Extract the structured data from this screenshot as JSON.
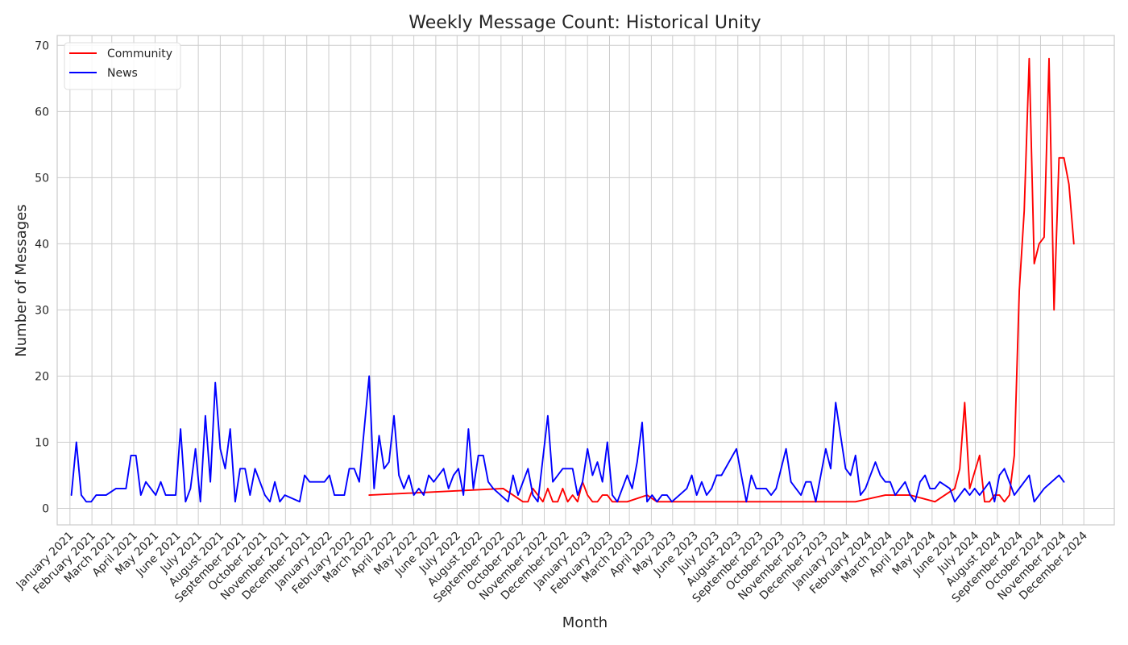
{
  "chart_data": {
    "type": "line",
    "title": "Weekly Message Count: Historical Unity",
    "xlabel": "Month",
    "ylabel": "Number of Messages",
    "xlim": [
      "2020-12-14",
      "2025-01-13"
    ],
    "ylim": [
      -2.5,
      71.5
    ],
    "yticks": [
      0,
      10,
      20,
      30,
      40,
      50,
      60,
      70
    ],
    "grid": true,
    "legend_position": "top-left",
    "month_ticks": [
      {
        "date": "2021-01-01",
        "label": "January 2021"
      },
      {
        "date": "2021-02-01",
        "label": "February 2021"
      },
      {
        "date": "2021-03-01",
        "label": "March 2021"
      },
      {
        "date": "2021-04-01",
        "label": "April 2021"
      },
      {
        "date": "2021-05-01",
        "label": "May 2021"
      },
      {
        "date": "2021-06-01",
        "label": "June 2021"
      },
      {
        "date": "2021-07-01",
        "label": "July 2021"
      },
      {
        "date": "2021-08-01",
        "label": "August 2021"
      },
      {
        "date": "2021-09-01",
        "label": "September 2021"
      },
      {
        "date": "2021-10-01",
        "label": "October 2021"
      },
      {
        "date": "2021-11-01",
        "label": "November 2021"
      },
      {
        "date": "2021-12-01",
        "label": "December 2021"
      },
      {
        "date": "2022-01-01",
        "label": "January 2022"
      },
      {
        "date": "2022-02-01",
        "label": "February 2022"
      },
      {
        "date": "2022-03-01",
        "label": "March 2022"
      },
      {
        "date": "2022-04-01",
        "label": "April 2022"
      },
      {
        "date": "2022-05-01",
        "label": "May 2022"
      },
      {
        "date": "2022-06-01",
        "label": "June 2022"
      },
      {
        "date": "2022-07-01",
        "label": "July 2022"
      },
      {
        "date": "2022-08-01",
        "label": "August 2022"
      },
      {
        "date": "2022-09-01",
        "label": "September 2022"
      },
      {
        "date": "2022-10-01",
        "label": "October 2022"
      },
      {
        "date": "2022-11-01",
        "label": "November 2022"
      },
      {
        "date": "2022-12-01",
        "label": "December 2022"
      },
      {
        "date": "2023-01-01",
        "label": "January 2023"
      },
      {
        "date": "2023-02-01",
        "label": "February 2023"
      },
      {
        "date": "2023-03-01",
        "label": "March 2023"
      },
      {
        "date": "2023-04-01",
        "label": "April 2023"
      },
      {
        "date": "2023-05-01",
        "label": "May 2023"
      },
      {
        "date": "2023-06-01",
        "label": "June 2023"
      },
      {
        "date": "2023-07-01",
        "label": "July 2023"
      },
      {
        "date": "2023-08-01",
        "label": "August 2023"
      },
      {
        "date": "2023-09-01",
        "label": "September 2023"
      },
      {
        "date": "2023-10-01",
        "label": "October 2023"
      },
      {
        "date": "2023-11-01",
        "label": "November 2023"
      },
      {
        "date": "2023-12-01",
        "label": "December 2023"
      },
      {
        "date": "2024-01-01",
        "label": "January 2024"
      },
      {
        "date": "2024-02-01",
        "label": "February 2024"
      },
      {
        "date": "2024-03-01",
        "label": "March 2024"
      },
      {
        "date": "2024-04-01",
        "label": "April 2024"
      },
      {
        "date": "2024-05-01",
        "label": "May 2024"
      },
      {
        "date": "2024-06-01",
        "label": "June 2024"
      },
      {
        "date": "2024-07-01",
        "label": "July 2024"
      },
      {
        "date": "2024-08-01",
        "label": "August 2024"
      },
      {
        "date": "2024-09-01",
        "label": "September 2024"
      },
      {
        "date": "2024-10-01",
        "label": "October 2024"
      },
      {
        "date": "2024-11-01",
        "label": "November 2024"
      },
      {
        "date": "2024-12-01",
        "label": "December 2024"
      }
    ],
    "series": [
      {
        "name": "Community",
        "color": "#ff0000",
        "points": [
          [
            "2022-02-27",
            2
          ],
          [
            "2022-09-04",
            3
          ],
          [
            "2022-09-18",
            2
          ],
          [
            "2022-10-02",
            1
          ],
          [
            "2022-10-09",
            1
          ],
          [
            "2022-10-16",
            3
          ],
          [
            "2022-10-30",
            1
          ],
          [
            "2022-11-06",
            3
          ],
          [
            "2022-11-13",
            1
          ],
          [
            "2022-11-20",
            1
          ],
          [
            "2022-11-27",
            3
          ],
          [
            "2022-12-04",
            1
          ],
          [
            "2022-12-11",
            2
          ],
          [
            "2022-12-18",
            1
          ],
          [
            "2022-12-25",
            4
          ],
          [
            "2023-01-01",
            2
          ],
          [
            "2023-01-08",
            1
          ],
          [
            "2023-01-15",
            1
          ],
          [
            "2023-01-22",
            2
          ],
          [
            "2023-01-29",
            2
          ],
          [
            "2023-02-05",
            1
          ],
          [
            "2023-02-26",
            1
          ],
          [
            "2023-03-26",
            2
          ],
          [
            "2023-04-09",
            1
          ],
          [
            "2024-01-14",
            1
          ],
          [
            "2024-02-25",
            2
          ],
          [
            "2024-03-31",
            2
          ],
          [
            "2024-05-05",
            1
          ],
          [
            "2024-05-19",
            2
          ],
          [
            "2024-06-02",
            3
          ],
          [
            "2024-06-09",
            6
          ],
          [
            "2024-06-16",
            16
          ],
          [
            "2024-06-23",
            3
          ],
          [
            "2024-07-07",
            8
          ],
          [
            "2024-07-14",
            1
          ],
          [
            "2024-07-21",
            1
          ],
          [
            "2024-07-28",
            2
          ],
          [
            "2024-08-04",
            2
          ],
          [
            "2024-08-11",
            1
          ],
          [
            "2024-08-18",
            2
          ],
          [
            "2024-08-25",
            8
          ],
          [
            "2024-09-01",
            33
          ],
          [
            "2024-09-08",
            45
          ],
          [
            "2024-09-15",
            68
          ],
          [
            "2024-09-22",
            37
          ],
          [
            "2024-09-29",
            40
          ],
          [
            "2024-10-06",
            41
          ],
          [
            "2024-10-13",
            68
          ],
          [
            "2024-10-20",
            30
          ],
          [
            "2024-10-27",
            53
          ],
          [
            "2024-11-03",
            53
          ],
          [
            "2024-11-10",
            49
          ],
          [
            "2024-11-17",
            40
          ]
        ]
      },
      {
        "name": "News",
        "color": "#0000ff",
        "points": [
          [
            "2021-01-03",
            2
          ],
          [
            "2021-01-10",
            10
          ],
          [
            "2021-01-17",
            2
          ],
          [
            "2021-01-24",
            1
          ],
          [
            "2021-01-31",
            1
          ],
          [
            "2021-02-07",
            2
          ],
          [
            "2021-02-14",
            2
          ],
          [
            "2021-02-21",
            2
          ],
          [
            "2021-03-07",
            3
          ],
          [
            "2021-03-14",
            3
          ],
          [
            "2021-03-21",
            3
          ],
          [
            "2021-03-28",
            8
          ],
          [
            "2021-04-04",
            8
          ],
          [
            "2021-04-11",
            2
          ],
          [
            "2021-04-18",
            4
          ],
          [
            "2021-04-25",
            3
          ],
          [
            "2021-05-02",
            2
          ],
          [
            "2021-05-09",
            4
          ],
          [
            "2021-05-16",
            2
          ],
          [
            "2021-05-23",
            2
          ],
          [
            "2021-05-30",
            2
          ],
          [
            "2021-06-06",
            12
          ],
          [
            "2021-06-13",
            1
          ],
          [
            "2021-06-20",
            3
          ],
          [
            "2021-06-27",
            9
          ],
          [
            "2021-07-04",
            1
          ],
          [
            "2021-07-11",
            14
          ],
          [
            "2021-07-18",
            4
          ],
          [
            "2021-07-25",
            19
          ],
          [
            "2021-08-01",
            9
          ],
          [
            "2021-08-08",
            6
          ],
          [
            "2021-08-15",
            12
          ],
          [
            "2021-08-22",
            1
          ],
          [
            "2021-08-29",
            6
          ],
          [
            "2021-09-05",
            6
          ],
          [
            "2021-09-12",
            2
          ],
          [
            "2021-09-19",
            6
          ],
          [
            "2021-10-03",
            2
          ],
          [
            "2021-10-10",
            1
          ],
          [
            "2021-10-17",
            4
          ],
          [
            "2021-10-24",
            1
          ],
          [
            "2021-10-31",
            2
          ],
          [
            "2021-11-21",
            1
          ],
          [
            "2021-11-28",
            5
          ],
          [
            "2021-12-05",
            4
          ],
          [
            "2021-12-26",
            4
          ],
          [
            "2022-01-02",
            5
          ],
          [
            "2022-01-09",
            2
          ],
          [
            "2022-01-23",
            2
          ],
          [
            "2022-01-30",
            6
          ],
          [
            "2022-02-06",
            6
          ],
          [
            "2022-02-13",
            4
          ],
          [
            "2022-02-27",
            20
          ],
          [
            "2022-03-06",
            3
          ],
          [
            "2022-03-13",
            11
          ],
          [
            "2022-03-20",
            6
          ],
          [
            "2022-03-27",
            7
          ],
          [
            "2022-04-03",
            14
          ],
          [
            "2022-04-10",
            5
          ],
          [
            "2022-04-17",
            3
          ],
          [
            "2022-04-24",
            5
          ],
          [
            "2022-05-01",
            2
          ],
          [
            "2022-05-08",
            3
          ],
          [
            "2022-05-15",
            2
          ],
          [
            "2022-05-22",
            5
          ],
          [
            "2022-05-29",
            4
          ],
          [
            "2022-06-12",
            6
          ],
          [
            "2022-06-19",
            3
          ],
          [
            "2022-06-26",
            5
          ],
          [
            "2022-07-03",
            6
          ],
          [
            "2022-07-10",
            2
          ],
          [
            "2022-07-17",
            12
          ],
          [
            "2022-07-24",
            3
          ],
          [
            "2022-07-31",
            8
          ],
          [
            "2022-08-07",
            8
          ],
          [
            "2022-08-14",
            4
          ],
          [
            "2022-08-21",
            3
          ],
          [
            "2022-09-11",
            1
          ],
          [
            "2022-09-18",
            5
          ],
          [
            "2022-09-25",
            2
          ],
          [
            "2022-10-09",
            6
          ],
          [
            "2022-10-16",
            2
          ],
          [
            "2022-10-23",
            1
          ],
          [
            "2022-11-06",
            14
          ],
          [
            "2022-11-13",
            4
          ],
          [
            "2022-11-27",
            6
          ],
          [
            "2022-12-11",
            6
          ],
          [
            "2022-12-18",
            2
          ],
          [
            "2022-12-25",
            4
          ],
          [
            "2023-01-01",
            9
          ],
          [
            "2023-01-08",
            5
          ],
          [
            "2023-01-15",
            7
          ],
          [
            "2023-01-22",
            4
          ],
          [
            "2023-01-29",
            10
          ],
          [
            "2023-02-05",
            2
          ],
          [
            "2023-02-12",
            1
          ],
          [
            "2023-02-26",
            5
          ],
          [
            "2023-03-05",
            3
          ],
          [
            "2023-03-12",
            7
          ],
          [
            "2023-03-19",
            13
          ],
          [
            "2023-03-26",
            1
          ],
          [
            "2023-04-02",
            2
          ],
          [
            "2023-04-09",
            1
          ],
          [
            "2023-04-16",
            2
          ],
          [
            "2023-04-23",
            2
          ],
          [
            "2023-04-30",
            1
          ],
          [
            "2023-05-21",
            3
          ],
          [
            "2023-05-28",
            5
          ],
          [
            "2023-06-04",
            2
          ],
          [
            "2023-06-11",
            4
          ],
          [
            "2023-06-18",
            2
          ],
          [
            "2023-06-25",
            3
          ],
          [
            "2023-07-02",
            5
          ],
          [
            "2023-07-09",
            5
          ],
          [
            "2023-07-30",
            9
          ],
          [
            "2023-08-06",
            5
          ],
          [
            "2023-08-13",
            1
          ],
          [
            "2023-08-20",
            5
          ],
          [
            "2023-08-27",
            3
          ],
          [
            "2023-09-10",
            3
          ],
          [
            "2023-09-17",
            2
          ],
          [
            "2023-09-24",
            3
          ],
          [
            "2023-10-08",
            9
          ],
          [
            "2023-10-15",
            4
          ],
          [
            "2023-10-22",
            3
          ],
          [
            "2023-10-29",
            2
          ],
          [
            "2023-11-05",
            4
          ],
          [
            "2023-11-12",
            4
          ],
          [
            "2023-11-19",
            1
          ],
          [
            "2023-11-26",
            5
          ],
          [
            "2023-12-03",
            9
          ],
          [
            "2023-12-10",
            6
          ],
          [
            "2023-12-17",
            16
          ],
          [
            "2023-12-24",
            11
          ],
          [
            "2023-12-31",
            6
          ],
          [
            "2024-01-07",
            5
          ],
          [
            "2024-01-14",
            8
          ],
          [
            "2024-01-21",
            2
          ],
          [
            "2024-01-28",
            3
          ],
          [
            "2024-02-11",
            7
          ],
          [
            "2024-02-18",
            5
          ],
          [
            "2024-02-25",
            4
          ],
          [
            "2024-03-03",
            4
          ],
          [
            "2024-03-10",
            2
          ],
          [
            "2024-03-24",
            4
          ],
          [
            "2024-03-31",
            2
          ],
          [
            "2024-04-07",
            1
          ],
          [
            "2024-04-14",
            4
          ],
          [
            "2024-04-21",
            5
          ],
          [
            "2024-04-28",
            3
          ],
          [
            "2024-05-05",
            3
          ],
          [
            "2024-05-12",
            4
          ],
          [
            "2024-05-26",
            3
          ],
          [
            "2024-06-02",
            1
          ],
          [
            "2024-06-16",
            3
          ],
          [
            "2024-06-23",
            2
          ],
          [
            "2024-06-30",
            3
          ],
          [
            "2024-07-07",
            2
          ],
          [
            "2024-07-14",
            3
          ],
          [
            "2024-07-21",
            4
          ],
          [
            "2024-07-28",
            1
          ],
          [
            "2024-08-04",
            5
          ],
          [
            "2024-08-11",
            6
          ],
          [
            "2024-08-18",
            4
          ],
          [
            "2024-08-25",
            2
          ],
          [
            "2024-09-15",
            5
          ],
          [
            "2024-09-22",
            1
          ],
          [
            "2024-10-06",
            3
          ],
          [
            "2024-10-27",
            5
          ],
          [
            "2024-11-03",
            4
          ]
        ]
      }
    ]
  }
}
